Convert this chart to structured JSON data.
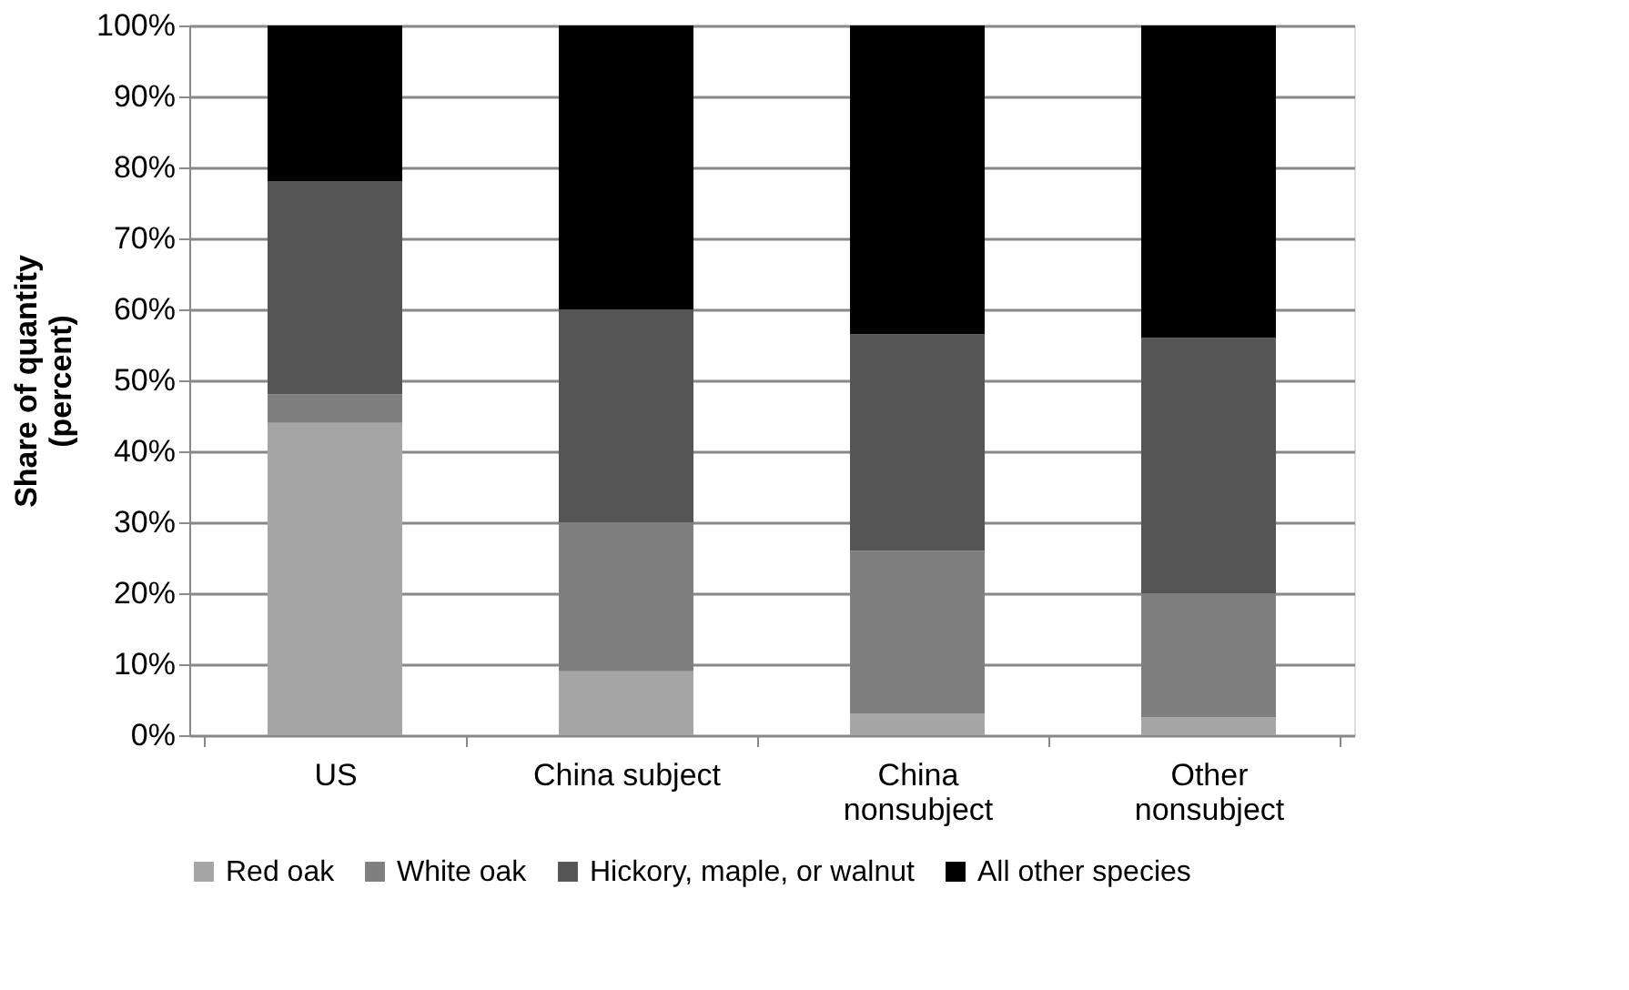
{
  "chart_data": {
    "type": "bar",
    "stacked": true,
    "ylabel": "Share of quantity\n(percent)",
    "categories": [
      "US",
      "China subject",
      "China\nnonsubject",
      "Other\nnonsubject"
    ],
    "series": [
      {
        "name": "Red oak",
        "color": "#a6a6a6",
        "values": [
          44,
          9,
          3,
          2.5
        ]
      },
      {
        "name": "White oak",
        "color": "#7f7f7f",
        "values": [
          4,
          21,
          23,
          17.5
        ]
      },
      {
        "name": "Hickory, maple, or walnut",
        "color": "#555555",
        "values": [
          30,
          30,
          30.5,
          36
        ]
      },
      {
        "name": "All other species",
        "color": "#000000",
        "values": [
          22,
          40,
          43.5,
          44
        ]
      }
    ],
    "ylim": [
      0,
      100
    ],
    "yticks": [
      {
        "value": 0,
        "label": "0%"
      },
      {
        "value": 10,
        "label": "10%"
      },
      {
        "value": 20,
        "label": "20%"
      },
      {
        "value": 30,
        "label": "30%"
      },
      {
        "value": 40,
        "label": "40%"
      },
      {
        "value": 50,
        "label": "50%"
      },
      {
        "value": 60,
        "label": "60%"
      },
      {
        "value": 70,
        "label": "70%"
      },
      {
        "value": 80,
        "label": "80%"
      },
      {
        "value": 90,
        "label": "90%"
      },
      {
        "value": 100,
        "label": "100%"
      }
    ],
    "grid": "y",
    "legend": "bottom"
  }
}
